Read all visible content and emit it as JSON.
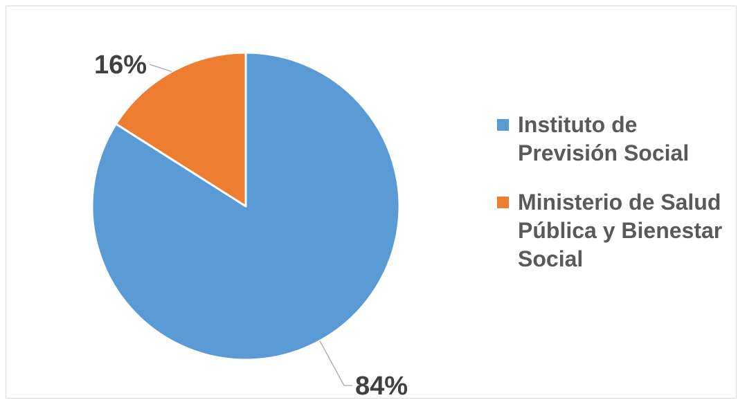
{
  "chart_data": {
    "type": "pie",
    "title": "",
    "categories": [
      "Instituto de Previsión Social",
      "Ministerio de Salud Pública y Bienestar Social"
    ],
    "values": [
      84,
      16
    ],
    "data_labels": [
      "84%",
      "16%"
    ],
    "colors": [
      "#5b9bd5",
      "#ed7d31"
    ],
    "start_angle_deg": 0,
    "direction": "clockwise",
    "legend_position": "right"
  },
  "legend": {
    "items": [
      {
        "label": "Instituto de Previsión Social",
        "color": "#5b9bd5"
      },
      {
        "label": "Ministerio de Salud Pública y Bienestar Social",
        "color": "#ed7d31"
      }
    ]
  }
}
